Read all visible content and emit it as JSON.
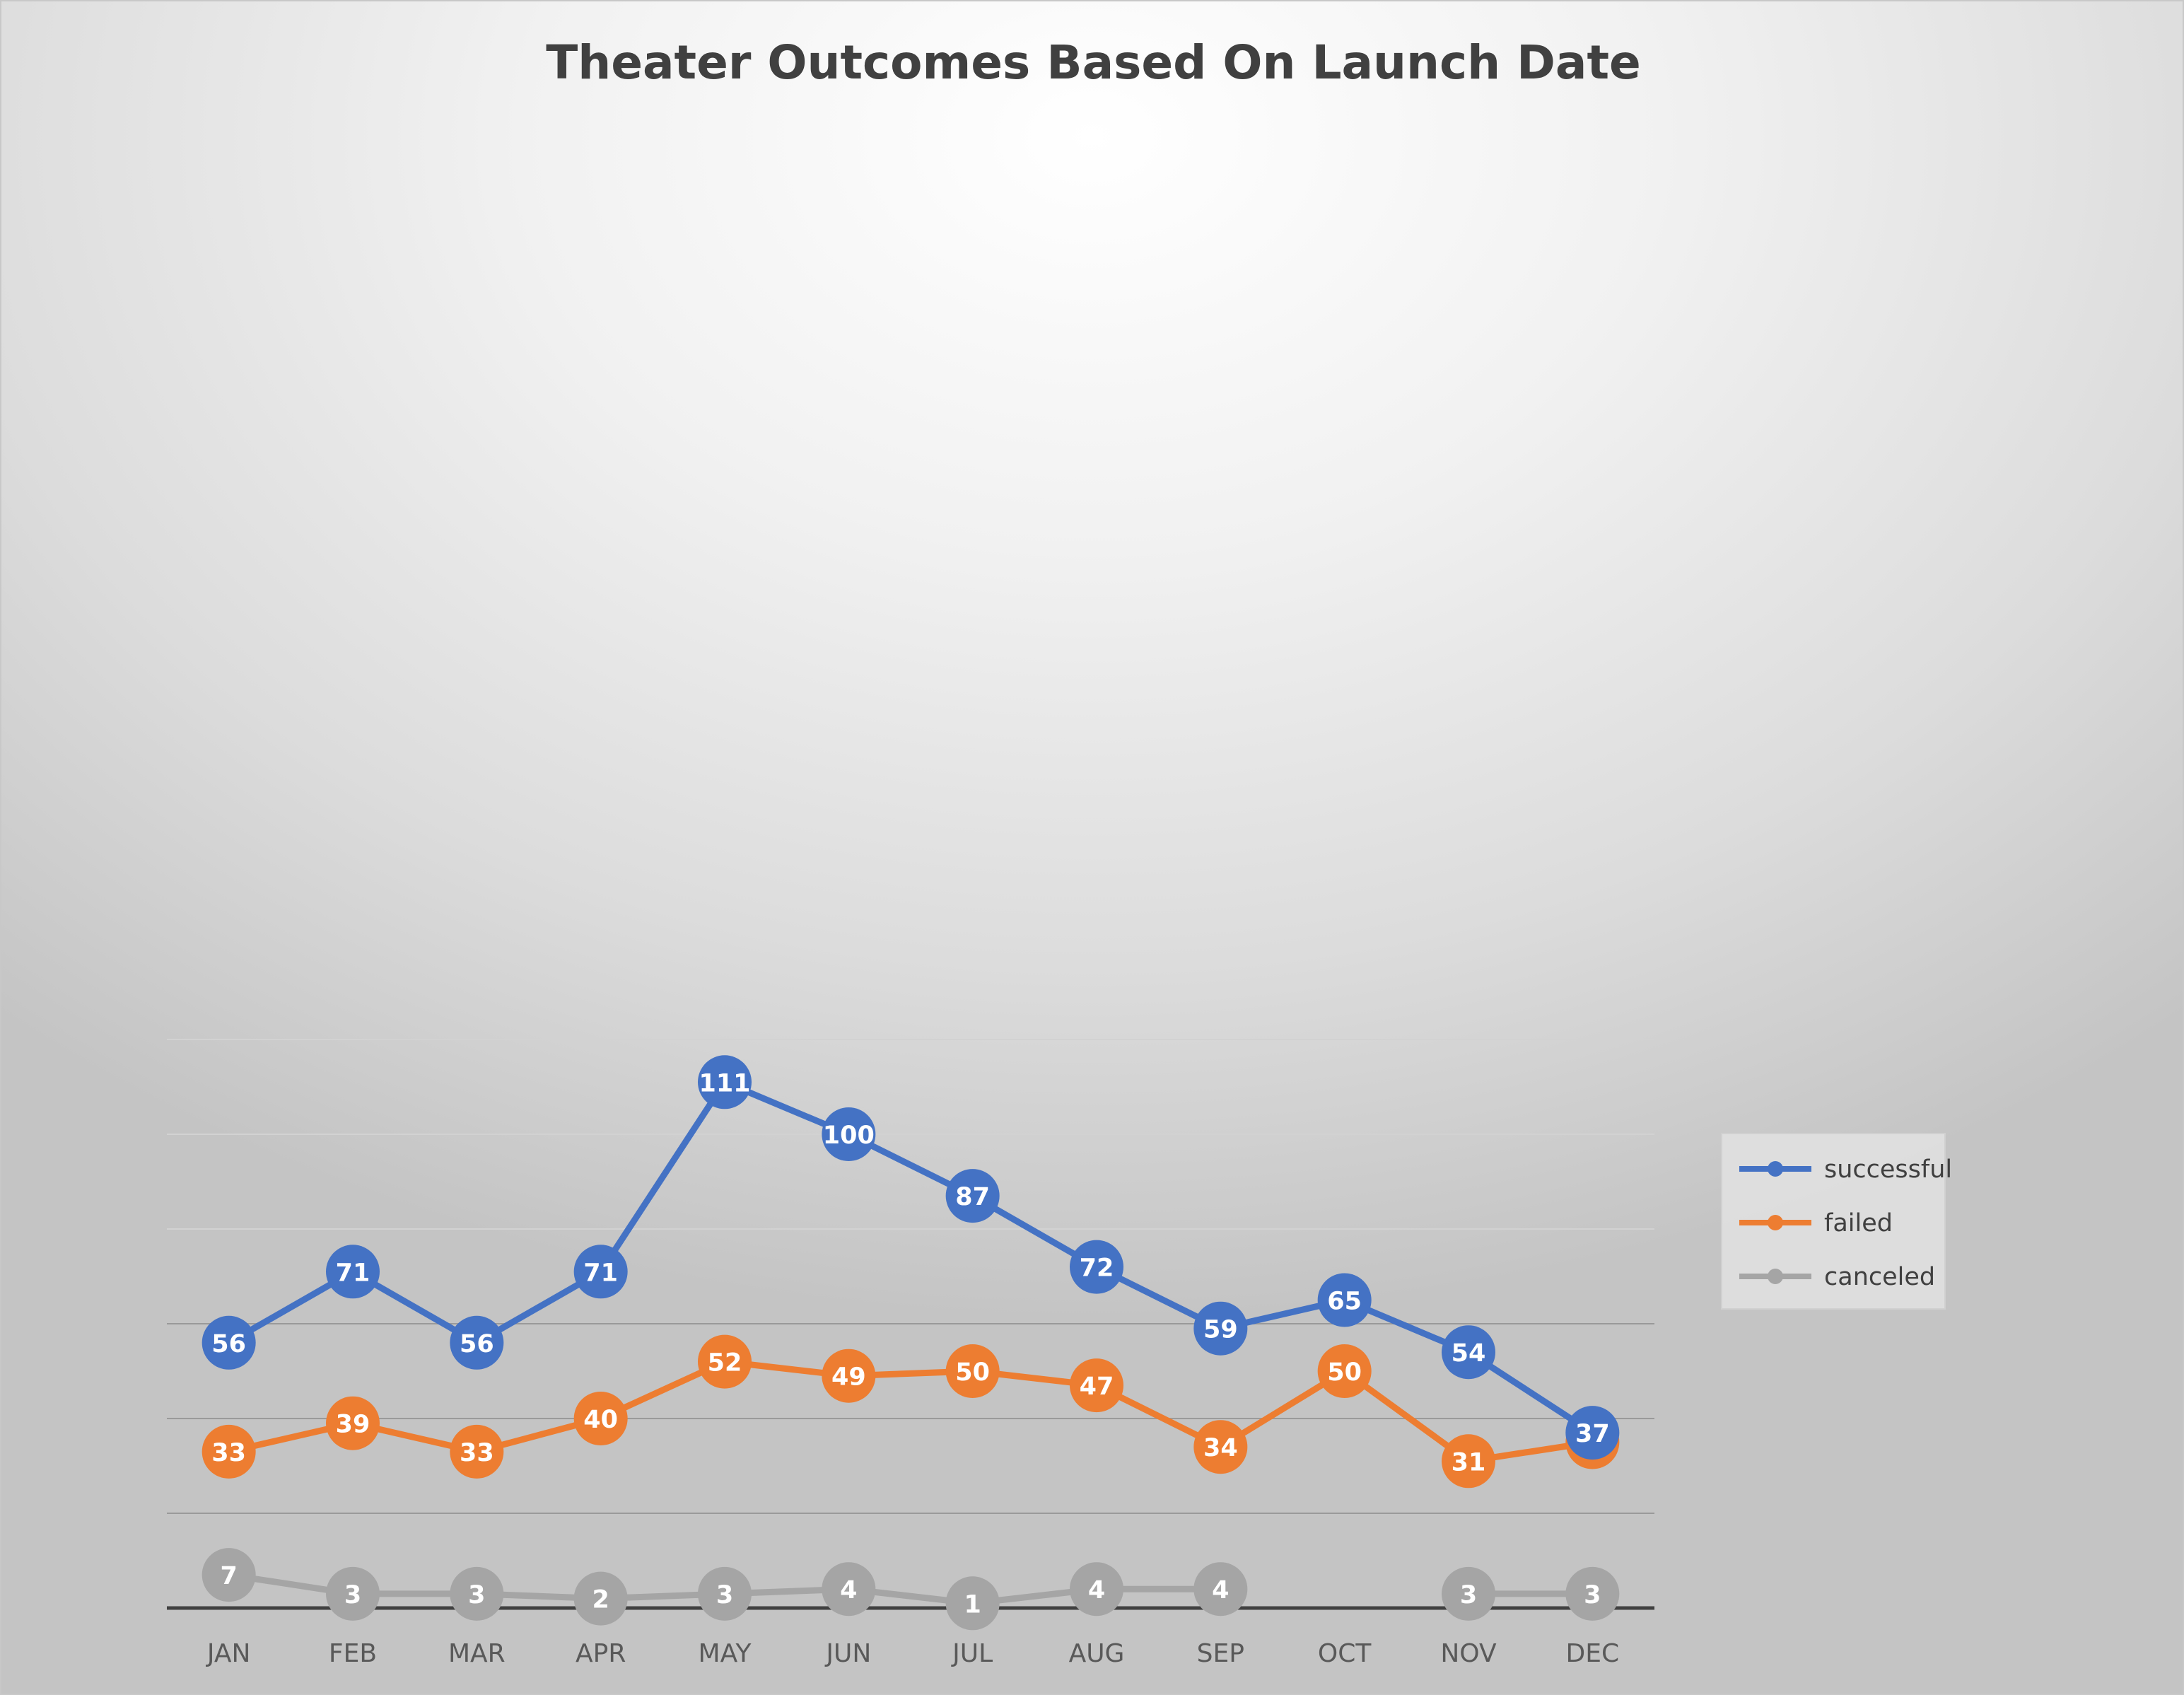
{
  "chart_data": {
    "type": "line",
    "title": "Theater Outcomes Based On Launch Date",
    "xlabel": "",
    "ylabel": "",
    "categories": [
      "JAN",
      "FEB",
      "MAR",
      "APR",
      "MAY",
      "JUN",
      "JUL",
      "AUG",
      "SEP",
      "OCT",
      "NOV",
      "DEC"
    ],
    "ylim": [
      0,
      120
    ],
    "grid": true,
    "legend_position": "right",
    "data_labels": true,
    "series": [
      {
        "name": "successful",
        "color": "#4472C4",
        "values": [
          56,
          71,
          56,
          71,
          111,
          100,
          87,
          72,
          59,
          65,
          54,
          37
        ]
      },
      {
        "name": "failed",
        "color": "#ED7D31",
        "values": [
          33,
          39,
          33,
          40,
          52,
          49,
          50,
          47,
          34,
          50,
          31,
          35
        ]
      },
      {
        "name": "canceled",
        "color": "#A5A5A5",
        "values": [
          7,
          3,
          3,
          2,
          3,
          4,
          1,
          4,
          4,
          null,
          3,
          3
        ]
      }
    ]
  }
}
